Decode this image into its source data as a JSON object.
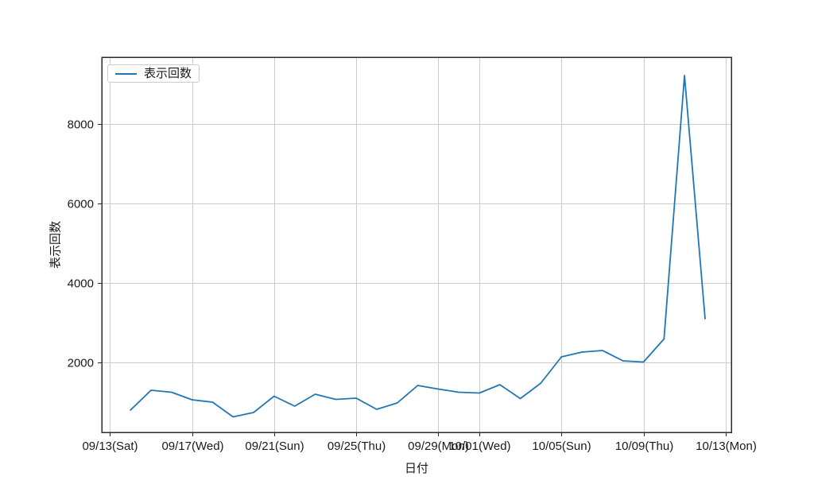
{
  "figure": {
    "background": "#ffffff"
  },
  "chart_data": {
    "type": "line",
    "title": "",
    "xlabel": "日付",
    "ylabel": "表示回数",
    "grid": true,
    "legend": {
      "position": "upper-left",
      "entries": [
        {
          "label": "表示回数",
          "color": "#1f77b4"
        }
      ]
    },
    "x": [
      "09/14",
      "09/15",
      "09/16",
      "09/17",
      "09/18",
      "09/19",
      "09/20",
      "09/21",
      "09/22",
      "09/23",
      "09/24",
      "09/25",
      "09/26",
      "09/27",
      "09/28",
      "09/29",
      "09/30",
      "10/01",
      "10/02",
      "10/03",
      "10/04",
      "10/05",
      "10/06",
      "10/07",
      "10/08",
      "10/09",
      "10/10",
      "10/11",
      "10/12"
    ],
    "series": [
      {
        "name": "表示回数",
        "color": "#1f77b4",
        "values": [
          800,
          1300,
          1250,
          1060,
          1000,
          630,
          740,
          1150,
          900,
          1200,
          1070,
          1100,
          820,
          980,
          1420,
          1330,
          1250,
          1230,
          1440,
          1090,
          1480,
          2140,
          2260,
          2300,
          2040,
          2010,
          2590,
          9220,
          3100
        ]
      }
    ],
    "x_ticks": [
      {
        "label": "09/13(Sat)",
        "date": "09/13"
      },
      {
        "label": "09/17(Wed)",
        "date": "09/17"
      },
      {
        "label": "09/21(Sun)",
        "date": "09/21"
      },
      {
        "label": "09/25(Thu)",
        "date": "09/25"
      },
      {
        "label": "09/29(Mon)",
        "date": "09/29"
      },
      {
        "label": "10/01(Wed)",
        "date": "10/01"
      },
      {
        "label": "10/05(Sun)",
        "date": "10/05"
      },
      {
        "label": "10/09(Thu)",
        "date": "10/09"
      },
      {
        "label": "10/13(Mon)",
        "date": "10/13"
      }
    ],
    "y_ticks": [
      2000,
      4000,
      6000,
      8000
    ],
    "ylim": [
      240,
      9680
    ],
    "xlim_days": [
      -0.4,
      30.28
    ],
    "colors": {
      "line": "#1f77b4",
      "grid": "#cccccc",
      "spine": "#2b2b2b",
      "text": "#1a1a1a",
      "legend_border": "#cccccc"
    }
  }
}
